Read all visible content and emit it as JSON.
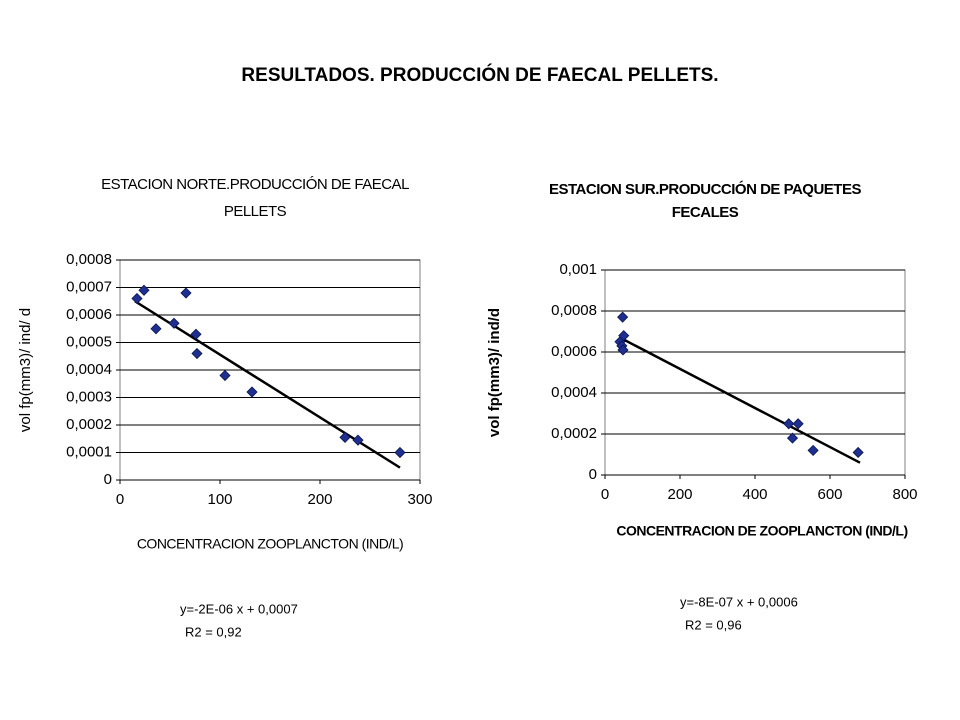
{
  "title": "RESULTADOS. PRODUCCIÓN DE FAECAL PELLETS.",
  "chart_data": [
    {
      "type": "scatter",
      "title": [
        "ESTACION NORTE.PRODUCCIÓN DE FAECAL",
        "PELLETS"
      ],
      "xlabel": "CONCENTRACION ZOOPLANCTON (IND/L)",
      "ylabel": "vol fp(mm3)/ ind/ d",
      "x": [
        17,
        24,
        36,
        54,
        66,
        76,
        77,
        105,
        132,
        225,
        238,
        280
      ],
      "y": [
        0.00066,
        0.00069,
        0.00055,
        0.00057,
        0.00068,
        0.00053,
        0.00046,
        0.00038,
        0.00032,
        0.000155,
        0.000145,
        0.0001
      ],
      "color": "#1f2f8f",
      "trend": {
        "x": [
          15,
          280
        ],
        "y": [
          0.00065,
          4.5e-05
        ]
      },
      "xlim": [
        0,
        300
      ],
      "xticks": [
        0,
        100,
        200,
        300
      ],
      "ylim": [
        0,
        0.0008
      ],
      "yticks": [
        0,
        {
          "value": 0.0001,
          "label": "0,0001"
        },
        {
          "value": 0.0002,
          "label": "0,0002"
        },
        {
          "value": 0.0003,
          "label": "0,0003"
        },
        {
          "value": 0.0004,
          "label": "0,0004"
        },
        {
          "value": 0.0005,
          "label": "0,0005"
        },
        {
          "value": 0.0006,
          "label": "0,0006"
        },
        {
          "value": 0.0007,
          "label": "0,0007"
        },
        {
          "value": 0.0008,
          "label": "0,0008"
        }
      ],
      "grid": true,
      "equation": [
        "y=-2E-06 x + 0,0007",
        "R2 = 0,92"
      ]
    },
    {
      "type": "scatter",
      "title": [
        "ESTACION SUR.PRODUCCIÓN DE PAQUETES",
        "FECALES"
      ],
      "xlabel": "CONCENTRACION DE ZOOPLANCTON (IND/L)",
      "ylabel": "vol fp(mm3)/ ind/d",
      "x": [
        40,
        45,
        48,
        50,
        47,
        490,
        500,
        515,
        555,
        675
      ],
      "y": [
        0.00065,
        0.00063,
        0.00061,
        0.00068,
        0.00077,
        0.00025,
        0.00018,
        0.00025,
        0.00012,
        0.00011
      ],
      "color": "#1f2f8f",
      "trend": {
        "x": [
          40,
          680
        ],
        "y": [
          0.00067,
          6e-05
        ]
      },
      "xlim": [
        0,
        800
      ],
      "xticks": [
        0,
        200,
        400,
        600,
        800
      ],
      "ylim": [
        0,
        0.001
      ],
      "yticks": [
        0,
        {
          "value": 0.0002,
          "label": "0,0002"
        },
        {
          "value": 0.0004,
          "label": "0,0004"
        },
        {
          "value": 0.0006,
          "label": "0,0006"
        },
        {
          "value": 0.0008,
          "label": "0,0008"
        },
        {
          "value": 0.001,
          "label": "0,001"
        }
      ],
      "grid": true,
      "equation": [
        "y=-8E-07 x + 0,0006",
        "R2 = 0,96"
      ]
    }
  ]
}
